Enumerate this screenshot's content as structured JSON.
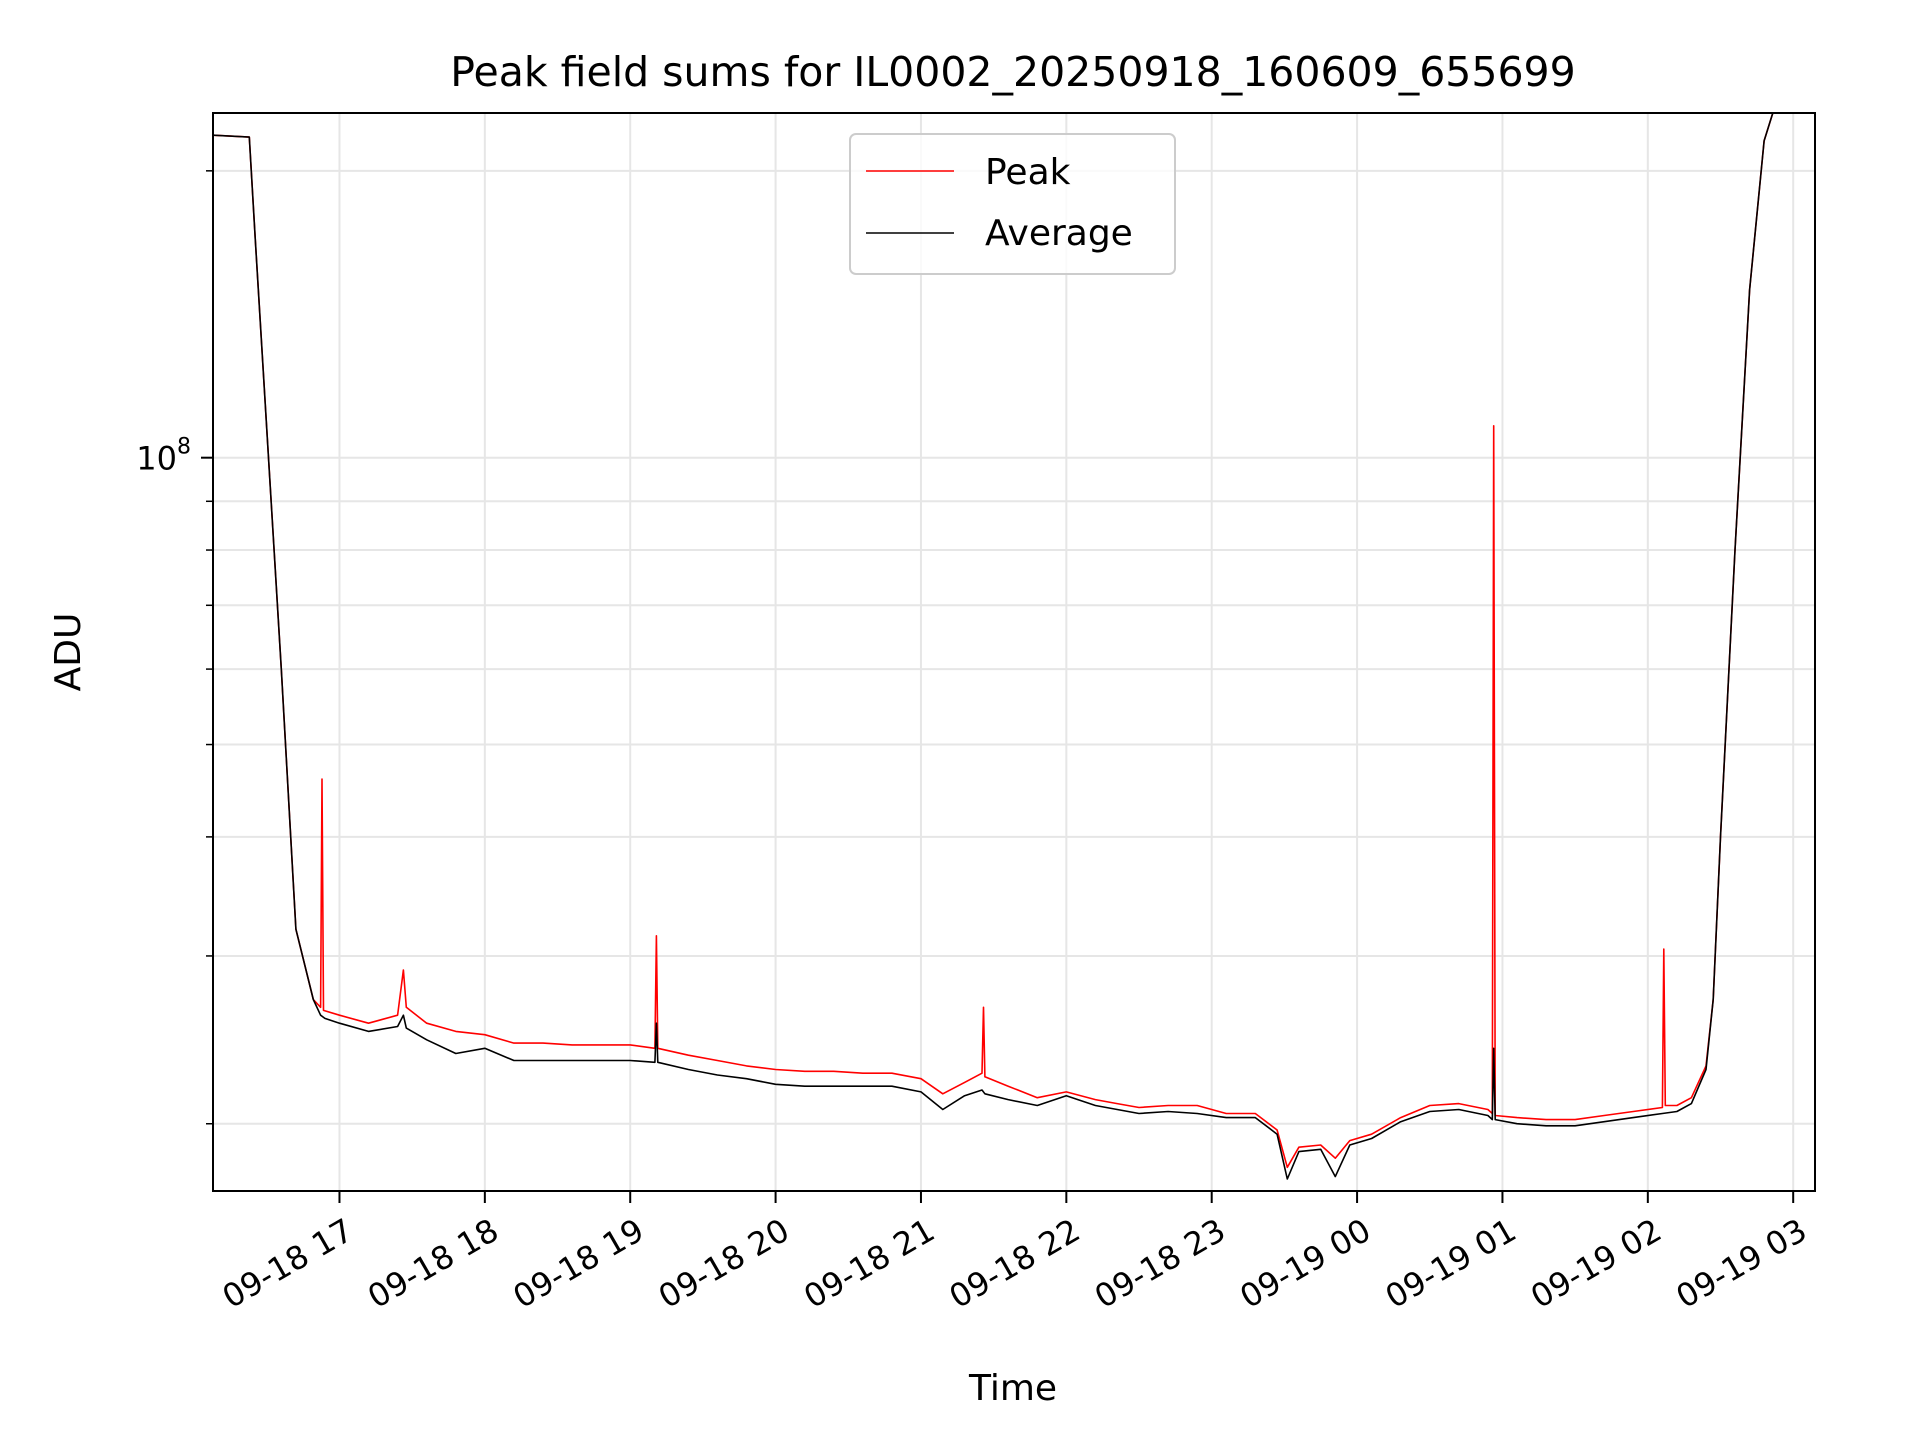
{
  "chart_data": {
    "type": "line",
    "title": "Peak field sums for IL0002_20250918_160609_655699",
    "xlabel": "Time",
    "ylabel": "ADU",
    "yscale": "log",
    "ylim": [
      17000000,
      230000000
    ],
    "xlim_hours": [
      16.13,
      27.15
    ],
    "grid": true,
    "legend_position": "top-center",
    "x_ticks": [
      {
        "hour": 17,
        "label": "09-18 17"
      },
      {
        "hour": 18,
        "label": "09-18 18"
      },
      {
        "hour": 19,
        "label": "09-18 19"
      },
      {
        "hour": 20,
        "label": "09-18 20"
      },
      {
        "hour": 21,
        "label": "09-18 21"
      },
      {
        "hour": 22,
        "label": "09-18 22"
      },
      {
        "hour": 23,
        "label": "09-18 23"
      },
      {
        "hour": 24,
        "label": "09-19 00"
      },
      {
        "hour": 25,
        "label": "09-19 01"
      },
      {
        "hour": 26,
        "label": "09-19 02"
      },
      {
        "hour": 27,
        "label": "09-19 03"
      }
    ],
    "y_major_tick": {
      "value": 100000000,
      "mantissa": "10",
      "exponent": "8"
    },
    "y_minor_ticks": [
      20000000,
      30000000,
      40000000,
      50000000,
      60000000,
      70000000,
      80000000,
      90000000,
      200000000
    ],
    "series": [
      {
        "name": "Peak",
        "color": "#ff0000",
        "x_hours": [
          16.13,
          16.38,
          16.42,
          16.6,
          16.7,
          16.82,
          16.87,
          16.88,
          16.89,
          17.0,
          17.2,
          17.4,
          17.44,
          17.46,
          17.6,
          17.8,
          18.0,
          18.2,
          18.4,
          18.6,
          18.8,
          19.0,
          19.17,
          19.18,
          19.19,
          19.4,
          19.6,
          19.8,
          20.0,
          20.2,
          20.4,
          20.6,
          20.8,
          21.0,
          21.15,
          21.3,
          21.42,
          21.43,
          21.44,
          21.6,
          21.8,
          22.0,
          22.2,
          22.35,
          22.5,
          22.7,
          22.9,
          23.1,
          23.3,
          23.45,
          23.52,
          23.6,
          23.75,
          23.85,
          23.95,
          24.1,
          24.3,
          24.5,
          24.7,
          24.9,
          24.93,
          24.94,
          24.95,
          25.1,
          25.3,
          25.5,
          25.7,
          25.9,
          26.1,
          26.11,
          26.12,
          26.2,
          26.3,
          26.4,
          26.45,
          26.5,
          26.6,
          26.7,
          26.8,
          26.86,
          27.15
        ],
        "y": [
          218000000,
          217000000,
          170000000,
          60000000,
          32000000,
          27000000,
          26500000,
          46000000,
          26300000,
          26000000,
          25500000,
          26000000,
          29000000,
          26500000,
          25500000,
          25000000,
          24800000,
          24300000,
          24300000,
          24200000,
          24200000,
          24200000,
          24000000,
          31500000,
          24000000,
          23600000,
          23300000,
          23000000,
          22800000,
          22700000,
          22700000,
          22600000,
          22600000,
          22300000,
          21500000,
          22100000,
          22600000,
          26500000,
          22400000,
          21900000,
          21300000,
          21600000,
          21200000,
          21000000,
          20800000,
          20900000,
          20900000,
          20500000,
          20500000,
          19700000,
          18000000,
          18900000,
          19000000,
          18400000,
          19200000,
          19500000,
          20300000,
          20900000,
          21000000,
          20700000,
          20500000,
          108000000,
          20400000,
          20300000,
          20200000,
          20200000,
          20400000,
          20600000,
          20800000,
          30500000,
          20900000,
          20900000,
          21300000,
          23000000,
          27000000,
          40000000,
          80000000,
          150000000,
          215000000,
          230000000,
          230000000
        ]
      },
      {
        "name": "Average",
        "color": "#000000",
        "x_hours": [
          16.13,
          16.38,
          16.42,
          16.6,
          16.7,
          16.82,
          16.87,
          16.9,
          17.0,
          17.2,
          17.4,
          17.44,
          17.46,
          17.6,
          17.8,
          18.0,
          18.2,
          18.4,
          18.6,
          18.8,
          19.0,
          19.17,
          19.18,
          19.19,
          19.4,
          19.6,
          19.8,
          20.0,
          20.2,
          20.4,
          20.6,
          20.8,
          21.0,
          21.15,
          21.3,
          21.42,
          21.44,
          21.6,
          21.8,
          22.0,
          22.2,
          22.35,
          22.5,
          22.7,
          22.9,
          23.1,
          23.3,
          23.45,
          23.52,
          23.6,
          23.75,
          23.85,
          23.95,
          24.1,
          24.3,
          24.5,
          24.7,
          24.9,
          24.93,
          24.94,
          24.95,
          25.1,
          25.3,
          25.5,
          25.7,
          25.9,
          26.1,
          26.2,
          26.3,
          26.4,
          26.45,
          26.5,
          26.6,
          26.7,
          26.8,
          26.86,
          27.15
        ],
        "y": [
          218000000,
          217000000,
          170000000,
          60000000,
          32000000,
          27000000,
          26000000,
          25800000,
          25500000,
          25000000,
          25300000,
          26000000,
          25200000,
          24500000,
          23700000,
          24000000,
          23300000,
          23300000,
          23300000,
          23300000,
          23300000,
          23200000,
          25500000,
          23200000,
          22800000,
          22500000,
          22300000,
          22000000,
          21900000,
          21900000,
          21900000,
          21900000,
          21600000,
          20700000,
          21400000,
          21700000,
          21500000,
          21200000,
          20900000,
          21400000,
          20900000,
          20700000,
          20500000,
          20600000,
          20500000,
          20300000,
          20300000,
          19500000,
          17500000,
          18700000,
          18800000,
          17600000,
          19000000,
          19300000,
          20100000,
          20600000,
          20700000,
          20400000,
          20200000,
          24000000,
          20200000,
          20000000,
          19900000,
          19900000,
          20100000,
          20300000,
          20500000,
          20600000,
          21000000,
          22800000,
          27000000,
          40000000,
          80000000,
          150000000,
          215000000,
          230000000,
          230000000
        ]
      }
    ]
  }
}
